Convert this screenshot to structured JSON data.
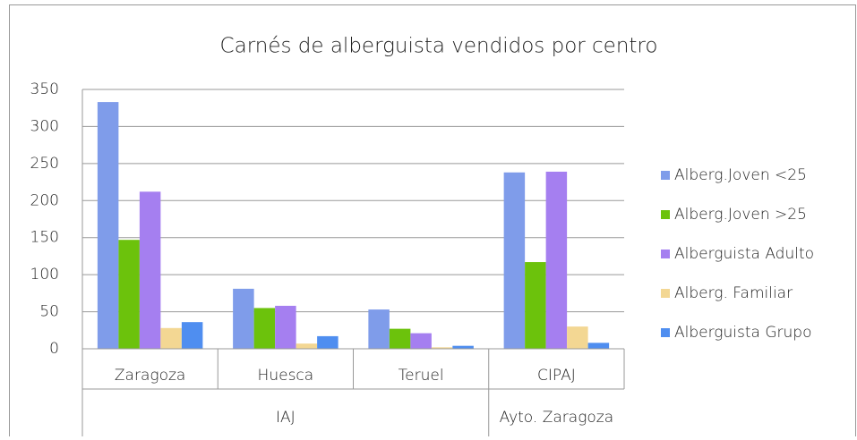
{
  "chart_data": {
    "type": "bar",
    "title": "Carnés de alberguista vendidos por centro",
    "categories": [
      "Zaragoza",
      "Huesca",
      "Teruel",
      "CIPAJ"
    ],
    "groups": [
      "IAJ",
      "Ayto. Zaragoza"
    ],
    "series": [
      {
        "name": "Alberg.Joven <25",
        "color": "#7f9cea",
        "values": [
          333,
          81,
          53,
          238
        ]
      },
      {
        "name": "Alberg.Joven >25",
        "color": "#6cc20c",
        "values": [
          147,
          55,
          27,
          117
        ]
      },
      {
        "name": "Alberguista Adulto",
        "color": "#a57ff0",
        "values": [
          212,
          58,
          21,
          239
        ]
      },
      {
        "name": "Alberg. Familiar",
        "color": "#f3d793",
        "values": [
          28,
          7,
          2,
          30
        ]
      },
      {
        "name": "Alberguista  Grupo",
        "color": "#4f8ef0",
        "values": [
          36,
          17,
          4,
          8
        ]
      }
    ],
    "ylim": [
      0,
      350
    ],
    "yticks": [
      0,
      50,
      100,
      150,
      200,
      250,
      300,
      350
    ],
    "grid": true,
    "legend": "right"
  }
}
